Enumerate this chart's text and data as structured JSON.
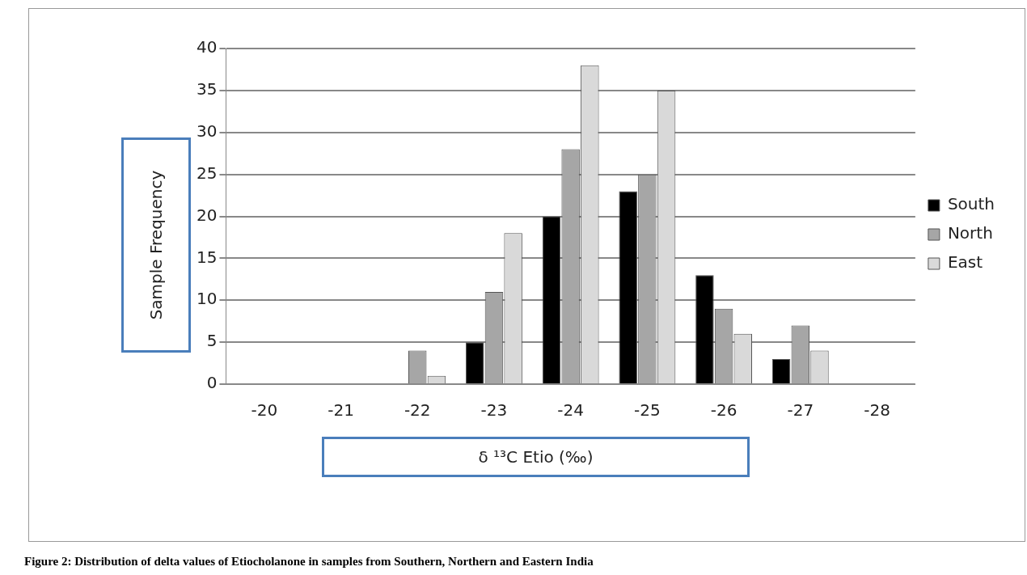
{
  "chart_data": {
    "type": "bar",
    "xlabel": "δ ¹³C Etio (‰)",
    "ylabel": "Sample Frequency",
    "categories": [
      "-20",
      "-21",
      "-22",
      "-23",
      "-24",
      "-25",
      "-26",
      "-27",
      "-28"
    ],
    "series": [
      {
        "name": "South",
        "color": "#000000",
        "values": [
          0,
          0,
          0,
          5,
          20,
          23,
          13,
          3,
          0
        ]
      },
      {
        "name": "North",
        "color": "#a6a6a6",
        "values": [
          0,
          0,
          4,
          11,
          28,
          25,
          9,
          7,
          0
        ]
      },
      {
        "name": "East",
        "color": "#d9d9d9",
        "values": [
          0,
          0,
          1,
          18,
          38,
          35,
          6,
          4,
          0
        ]
      }
    ],
    "ylim": [
      0,
      40
    ],
    "yticks": [
      0,
      5,
      10,
      15,
      20,
      25,
      30,
      35,
      40
    ],
    "grid": "y",
    "legend": "right",
    "annotations": [
      "Figure 2: Distribution of delta values of Etiocholanone in samples from  Southern, Northern and Eastern India"
    ]
  }
}
